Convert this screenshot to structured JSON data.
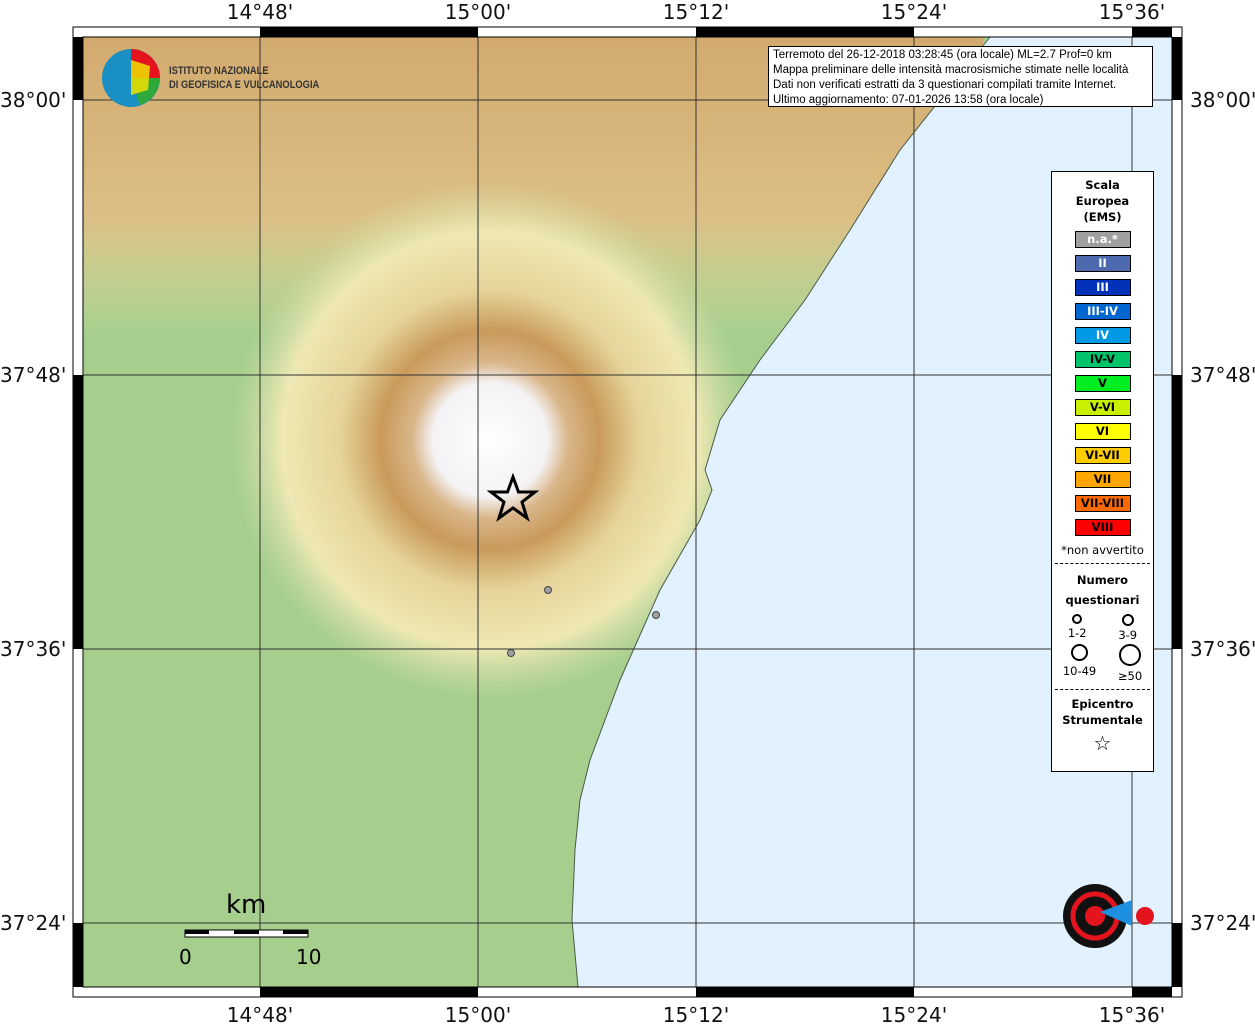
{
  "map": {
    "lon_ticks": [
      "14°48'",
      "15°00'",
      "15°12'",
      "15°24'",
      "15°36'"
    ],
    "lat_ticks": [
      "38°00'",
      "37°48'",
      "37°36'",
      "37°24'"
    ]
  },
  "info": {
    "line1": "Terremoto del 26-12-2018 03:28:45 (ora locale) ML=2.7 Prof=0 km",
    "line2": "Mappa preliminare delle intensità macrosismiche stimate nelle località",
    "line3": "Dati non verificati estratti da 3 questionari compilati tramite Internet.",
    "line4": "Ultimo aggiornamento: 07-01-2026 13:58 (ora locale)"
  },
  "logo_ingv": {
    "line1": "ISTITUTO NAZIONALE",
    "line2": "DI GEOFISICA E VULCANOLOGIA"
  },
  "logo_hsit": "www.haisentitoilterremoto.it",
  "legend": {
    "title1": "Scala",
    "title2": "Europea",
    "title3": "(EMS)",
    "scale": [
      {
        "label": "n.a.*",
        "color": "#a0a0a0",
        "text": "#ffffff"
      },
      {
        "label": "II",
        "color": "#4e6aae",
        "text": "#ffffff"
      },
      {
        "label": "III",
        "color": "#0031b8",
        "text": "#ffffff"
      },
      {
        "label": "III-IV",
        "color": "#0066d0",
        "text": "#ffffff"
      },
      {
        "label": "IV",
        "color": "#0099e6",
        "text": "#ffffff"
      },
      {
        "label": "IV-V",
        "color": "#00c46a",
        "text": "#000000"
      },
      {
        "label": "V",
        "color": "#00ee22",
        "text": "#000000"
      },
      {
        "label": "V-VI",
        "color": "#c8f000",
        "text": "#000000"
      },
      {
        "label": "VI",
        "color": "#ffff00",
        "text": "#000000"
      },
      {
        "label": "VI-VII",
        "color": "#ffcc00",
        "text": "#000000"
      },
      {
        "label": "VII",
        "color": "#ffa600",
        "text": "#000000"
      },
      {
        "label": "VII-VIII",
        "color": "#ff6a00",
        "text": "#000000"
      },
      {
        "label": "VIII",
        "color": "#ff0000",
        "text": "#000000"
      }
    ],
    "footnote": "*non avvertito",
    "count_title1": "Numero",
    "count_title2": "questionari",
    "counts": [
      "1-2",
      "3-9",
      "10-49",
      "≥50"
    ],
    "epi_title1": "Epicentro",
    "epi_title2": "Strumentale"
  },
  "scalebar": {
    "unit": "km",
    "start": "0",
    "end": "10"
  },
  "observations": {
    "count": 3,
    "color": "#a0a0a0"
  }
}
